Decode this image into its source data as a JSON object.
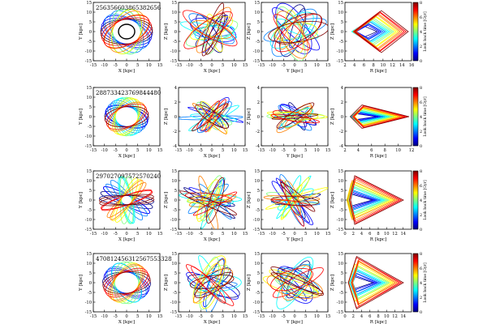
{
  "figure": {
    "colorbar": {
      "label": "Look back time [Gyr]",
      "ticks": [
        "0",
        "2",
        "4",
        "6",
        "8"
      ]
    },
    "colormap": [
      "#00007f",
      "#0000ff",
      "#007fff",
      "#00ffff",
      "#7fff7f",
      "#ffff00",
      "#ff7f00",
      "#ff0000",
      "#7f0000"
    ]
  },
  "chart_data": [
    {
      "type": "line",
      "row": 0,
      "col": 0,
      "label": "256356603865382656",
      "xlabel": "X [kpc]",
      "ylabel": "Y [kpc]",
      "xlim": [
        -15,
        15
      ],
      "ylim": [
        -15,
        15
      ],
      "xticks": [
        "-15",
        "-10",
        "-5",
        "0",
        "5",
        "10",
        "15"
      ],
      "yticks": [
        "-15",
        "-10",
        "-5",
        "0",
        "5",
        "10",
        "15"
      ]
    },
    {
      "type": "line",
      "row": 0,
      "col": 1,
      "xlabel": "X [kpc]",
      "ylabel": "Z [kpc]",
      "xlim": [
        -15,
        15
      ],
      "ylim": [
        -15,
        15
      ],
      "xticks": [
        "-15",
        "-10",
        "-5",
        "0",
        "5",
        "10",
        "15"
      ],
      "yticks": [
        "-15",
        "-10",
        "-5",
        "0",
        "5",
        "10",
        "15"
      ]
    },
    {
      "type": "line",
      "row": 0,
      "col": 2,
      "xlabel": "Y [kpc]",
      "ylabel": "Z [kpc]",
      "xlim": [
        -15,
        15
      ],
      "ylim": [
        -15,
        15
      ],
      "xticks": [
        "-15",
        "-10",
        "-5",
        "0",
        "5",
        "10",
        "15"
      ],
      "yticks": [
        "-15",
        "-10",
        "-5",
        "0",
        "5",
        "10",
        "15"
      ]
    },
    {
      "type": "line",
      "row": 0,
      "col": 3,
      "xlabel": "R [kpc]",
      "ylabel": "Z [kpc]",
      "xlim": [
        2,
        16
      ],
      "ylim": [
        -15,
        15
      ],
      "xticks": [
        "2",
        "4",
        "6",
        "8",
        "10",
        "12",
        "14",
        "16"
      ],
      "yticks": [
        "-15",
        "-10",
        "-5",
        "0",
        "5",
        "10",
        "15"
      ]
    },
    {
      "type": "line",
      "row": 1,
      "col": 0,
      "label": "288733423769844480",
      "xlabel": "X [kpc]",
      "ylabel": "Y [kpc]",
      "xlim": [
        -15,
        15
      ],
      "ylim": [
        -15,
        15
      ],
      "xticks": [
        "-15",
        "-10",
        "-5",
        "0",
        "5",
        "10",
        "15"
      ],
      "yticks": [
        "-15",
        "-10",
        "-5",
        "0",
        "5",
        "10",
        "15"
      ]
    },
    {
      "type": "line",
      "row": 1,
      "col": 1,
      "xlabel": "X [kpc]",
      "ylabel": "Z [kpc]",
      "xlim": [
        -15,
        15
      ],
      "ylim": [
        -4,
        4
      ],
      "xticks": [
        "-15",
        "-10",
        "-5",
        "0",
        "5",
        "10",
        "15"
      ],
      "yticks": [
        "-4",
        "-2",
        "0",
        "2",
        "4"
      ]
    },
    {
      "type": "line",
      "row": 1,
      "col": 2,
      "xlabel": "Y [kpc]",
      "ylabel": "Z [kpc]",
      "xlim": [
        -15,
        15
      ],
      "ylim": [
        -4,
        4
      ],
      "xticks": [
        "-15",
        "-10",
        "-5",
        "0",
        "5",
        "10",
        "15"
      ],
      "yticks": [
        "-4",
        "-2",
        "0",
        "2",
        "4"
      ]
    },
    {
      "type": "line",
      "row": 1,
      "col": 3,
      "xlabel": "R [kpc]",
      "ylabel": "Z [kpc]",
      "xlim": [
        2,
        12
      ],
      "ylim": [
        -4,
        4
      ],
      "xticks": [
        "2",
        "4",
        "6",
        "8",
        "10",
        "12"
      ],
      "yticks": [
        "-4",
        "-2",
        "0",
        "2",
        "4"
      ]
    },
    {
      "type": "line",
      "row": 2,
      "col": 0,
      "label": "297027097572570240",
      "xlabel": "X [kpc]",
      "ylabel": "Y [kpc]",
      "xlim": [
        -15,
        15
      ],
      "ylim": [
        -15,
        15
      ],
      "xticks": [
        "-15",
        "-10",
        "-5",
        "0",
        "5",
        "10",
        "15"
      ],
      "yticks": [
        "-15",
        "-10",
        "-5",
        "0",
        "5",
        "10",
        "15"
      ]
    },
    {
      "type": "line",
      "row": 2,
      "col": 1,
      "xlabel": "X [kpc]",
      "ylabel": "Z [kpc]",
      "xlim": [
        -15,
        15
      ],
      "ylim": [
        -15,
        15
      ],
      "xticks": [
        "-15",
        "-10",
        "-5",
        "0",
        "5",
        "10",
        "15"
      ],
      "yticks": [
        "-15",
        "-10",
        "-5",
        "0",
        "5",
        "10",
        "15"
      ]
    },
    {
      "type": "line",
      "row": 2,
      "col": 2,
      "xlabel": "Y [kpc]",
      "ylabel": "Z [kpc]",
      "xlim": [
        -15,
        15
      ],
      "ylim": [
        -15,
        15
      ],
      "xticks": [
        "-15",
        "-10",
        "-5",
        "0",
        "5",
        "10",
        "15"
      ],
      "yticks": [
        "-15",
        "-10",
        "-5",
        "0",
        "5",
        "10",
        "15"
      ]
    },
    {
      "type": "line",
      "row": 2,
      "col": 3,
      "xlabel": "R [kpc]",
      "ylabel": "Z [kpc]",
      "xlim": [
        0,
        16
      ],
      "ylim": [
        -15,
        15
      ],
      "xticks": [
        "0",
        "2",
        "4",
        "6",
        "8",
        "10",
        "12",
        "14"
      ],
      "yticks": [
        "-15",
        "-10",
        "-5",
        "0",
        "5",
        "10",
        "15"
      ]
    },
    {
      "type": "line",
      "row": 3,
      "col": 0,
      "label": "470812456312567553328",
      "xlabel": "X [kpc]",
      "ylabel": "Y [kpc]",
      "xlim": [
        -15,
        15
      ],
      "ylim": [
        -15,
        15
      ],
      "xticks": [
        "-15",
        "-10",
        "-5",
        "0",
        "5",
        "10",
        "15"
      ],
      "yticks": [
        "-15",
        "-10",
        "-5",
        "0",
        "5",
        "10",
        "15"
      ]
    },
    {
      "type": "line",
      "row": 3,
      "col": 1,
      "xlabel": "X [kpc]",
      "ylabel": "Z [kpc]",
      "xlim": [
        -15,
        15
      ],
      "ylim": [
        -15,
        15
      ],
      "xticks": [
        "-15",
        "-10",
        "-5",
        "0",
        "5",
        "10",
        "15"
      ],
      "yticks": [
        "-15",
        "-10",
        "-5",
        "0",
        "5",
        "10",
        "15"
      ]
    },
    {
      "type": "line",
      "row": 3,
      "col": 2,
      "xlabel": "Y [kpc]",
      "ylabel": "Z [kpc]",
      "xlim": [
        -15,
        15
      ],
      "ylim": [
        -15,
        15
      ],
      "xticks": [
        "-15",
        "-10",
        "-5",
        "0",
        "5",
        "10",
        "15"
      ],
      "yticks": [
        "-15",
        "-10",
        "-5",
        "0",
        "5",
        "10",
        "15"
      ]
    },
    {
      "type": "line",
      "row": 3,
      "col": 3,
      "xlabel": "R [kpc]",
      "ylabel": "Z [kpc]",
      "xlim": [
        0,
        16
      ],
      "ylim": [
        -15,
        15
      ],
      "xticks": [
        "0",
        "2",
        "4",
        "6",
        "8",
        "10",
        "12",
        "14"
      ],
      "yticks": [
        "-15",
        "-10",
        "-5",
        "0",
        "5",
        "10",
        "15"
      ]
    }
  ]
}
